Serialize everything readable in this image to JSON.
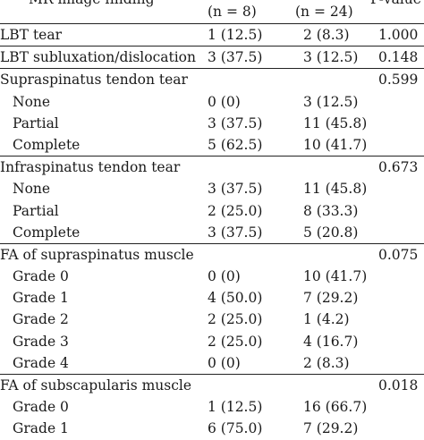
{
  "header": {
    "finding": "MR image finding",
    "group1": "(n = 8)",
    "group2": "(n = 24)",
    "pvalue": "P-value"
  },
  "rows": [
    {
      "label": "LBT tear",
      "g1": "1 (12.5)",
      "g2": "2 (8.3)",
      "p": "1.000",
      "type": "section",
      "first": true
    },
    {
      "label": "LBT subluxation/dislocation",
      "g1": "3 (37.5)",
      "g2": "3 (12.5)",
      "p": "0.148",
      "type": "section"
    },
    {
      "label": "Supraspinatus tendon tear",
      "g1": "",
      "g2": "",
      "p": "0.599",
      "type": "section"
    },
    {
      "label": "None",
      "g1": "0 (0)",
      "g2": "3 (12.5)",
      "p": "",
      "type": "sub"
    },
    {
      "label": "Partial",
      "g1": "3 (37.5)",
      "g2": "11 (45.8)",
      "p": "",
      "type": "sub"
    },
    {
      "label": "Complete",
      "g1": "5 (62.5)",
      "g2": "10 (41.7)",
      "p": "",
      "type": "sub"
    },
    {
      "label": "Infraspinatus tendon tear",
      "g1": "",
      "g2": "",
      "p": "0.673",
      "type": "section"
    },
    {
      "label": "None",
      "g1": "3 (37.5)",
      "g2": "11 (45.8)",
      "p": "",
      "type": "sub"
    },
    {
      "label": "Partial",
      "g1": "2 (25.0)",
      "g2": "8 (33.3)",
      "p": "",
      "type": "sub"
    },
    {
      "label": "Complete",
      "g1": "3 (37.5)",
      "g2": "5 (20.8)",
      "p": "",
      "type": "sub"
    },
    {
      "label": "FA of supraspinatus muscle",
      "g1": "",
      "g2": "",
      "p": "0.075",
      "type": "section"
    },
    {
      "label": "Grade 0",
      "g1": "0 (0)",
      "g2": "10 (41.7)",
      "p": "",
      "type": "sub"
    },
    {
      "label": "Grade 1",
      "g1": "4 (50.0)",
      "g2": "7 (29.2)",
      "p": "",
      "type": "sub"
    },
    {
      "label": "Grade 2",
      "g1": "2 (25.0)",
      "g2": "1 (4.2)",
      "p": "",
      "type": "sub"
    },
    {
      "label": "Grade 3",
      "g1": "2 (25.0)",
      "g2": "4 (16.7)",
      "p": "",
      "type": "sub"
    },
    {
      "label": "Grade 4",
      "g1": "0 (0)",
      "g2": "2 (8.3)",
      "p": "",
      "type": "sub"
    },
    {
      "label": "FA of subscapularis muscle",
      "g1": "",
      "g2": "",
      "p": "0.018",
      "type": "section"
    },
    {
      "label": "Grade 0",
      "g1": "1 (12.5)",
      "g2": "16 (66.7)",
      "p": "",
      "type": "sub"
    },
    {
      "label": "Grade 1",
      "g1": "6 (75.0)",
      "g2": "7 (29.2)",
      "p": "",
      "type": "sub"
    }
  ]
}
